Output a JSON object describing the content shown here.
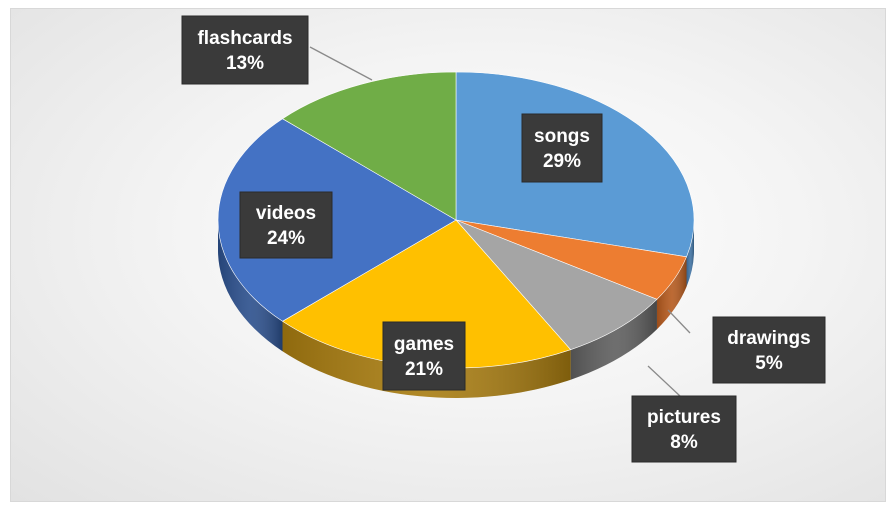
{
  "chart_data": {
    "type": "pie",
    "style": "3d",
    "title": "",
    "show_legend": false,
    "slices": [
      {
        "label": "songs",
        "value": 29,
        "display": "29%",
        "color": "#5b9bd5",
        "side_color": "#3f72a3"
      },
      {
        "label": "drawings",
        "value": 5,
        "display": "5%",
        "color": "#ed7d31",
        "side_color": "#b55a1e"
      },
      {
        "label": "pictures",
        "value": 8,
        "display": "8%",
        "color": "#a5a5a5",
        "side_color": "#5e5e5e"
      },
      {
        "label": "games",
        "value": 21,
        "display": "21%",
        "color": "#ffc000",
        "side_color": "#a87c10"
      },
      {
        "label": "videos",
        "value": 24,
        "display": "24%",
        "color": "#4472c4",
        "side_color": "#2b4f8c"
      },
      {
        "label": "flashcards",
        "value": 13,
        "display": "13%",
        "color": "#70ad47",
        "side_color": "#4d7a30"
      }
    ]
  }
}
